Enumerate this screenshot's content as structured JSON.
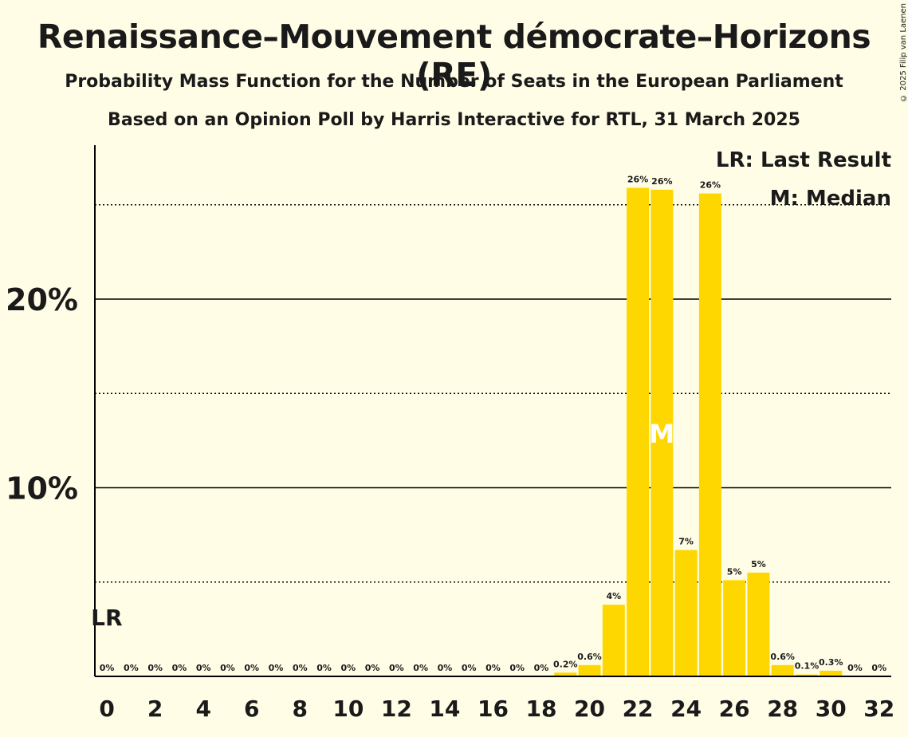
{
  "title": "Renaissance–Mouvement démocrate–Horizons (RE)",
  "subtitle": "Probability Mass Function for the Number of Seats in the European Parliament",
  "subtitle2": "Based on an Opinion Poll by Harris Interactive for RTL, 31 March 2025",
  "copyright": "© 2025 Filip van Laenen",
  "legend": {
    "lr": "LR: Last Result",
    "m": "M: Median"
  },
  "markers": {
    "lr_label": "LR",
    "lr_seat": 0,
    "median_label": "M",
    "median_seat": 23
  },
  "colors": {
    "bar": "#FFD700",
    "background": "#FFFDE6",
    "axis": "#000000"
  },
  "chart_data": {
    "type": "bar",
    "xlabel": "",
    "ylabel": "",
    "ylim": [
      0,
      28
    ],
    "yticks": [
      10,
      20
    ],
    "ytick_labels": [
      "10%",
      "20%"
    ],
    "minor_gridlines": [
      5,
      15,
      25
    ],
    "x_tick_labels": [
      "0",
      "2",
      "4",
      "6",
      "8",
      "10",
      "12",
      "14",
      "16",
      "18",
      "20",
      "22",
      "24",
      "26",
      "28",
      "30",
      "32"
    ],
    "categories": [
      0,
      1,
      2,
      3,
      4,
      5,
      6,
      7,
      8,
      9,
      10,
      11,
      12,
      13,
      14,
      15,
      16,
      17,
      18,
      19,
      20,
      21,
      22,
      23,
      24,
      25,
      26,
      27,
      28,
      29,
      30,
      31,
      32
    ],
    "values": [
      0,
      0,
      0,
      0,
      0,
      0,
      0,
      0,
      0,
      0,
      0,
      0,
      0,
      0,
      0,
      0,
      0,
      0,
      0,
      0.2,
      0.6,
      3.8,
      25.9,
      25.8,
      6.7,
      25.6,
      5.1,
      5.5,
      0.6,
      0.1,
      0.3,
      0,
      0
    ],
    "data_labels": [
      "0%",
      "0%",
      "0%",
      "0%",
      "0%",
      "0%",
      "0%",
      "0%",
      "0%",
      "0%",
      "0%",
      "0%",
      "0%",
      "0%",
      "0%",
      "0%",
      "0%",
      "0%",
      "0%",
      "0.2%",
      "0.6%",
      "4%",
      "26%",
      "26%",
      "7%",
      "26%",
      "5%",
      "5%",
      "0.6%",
      "0.1%",
      "0.3%",
      "0%",
      "0%"
    ]
  }
}
